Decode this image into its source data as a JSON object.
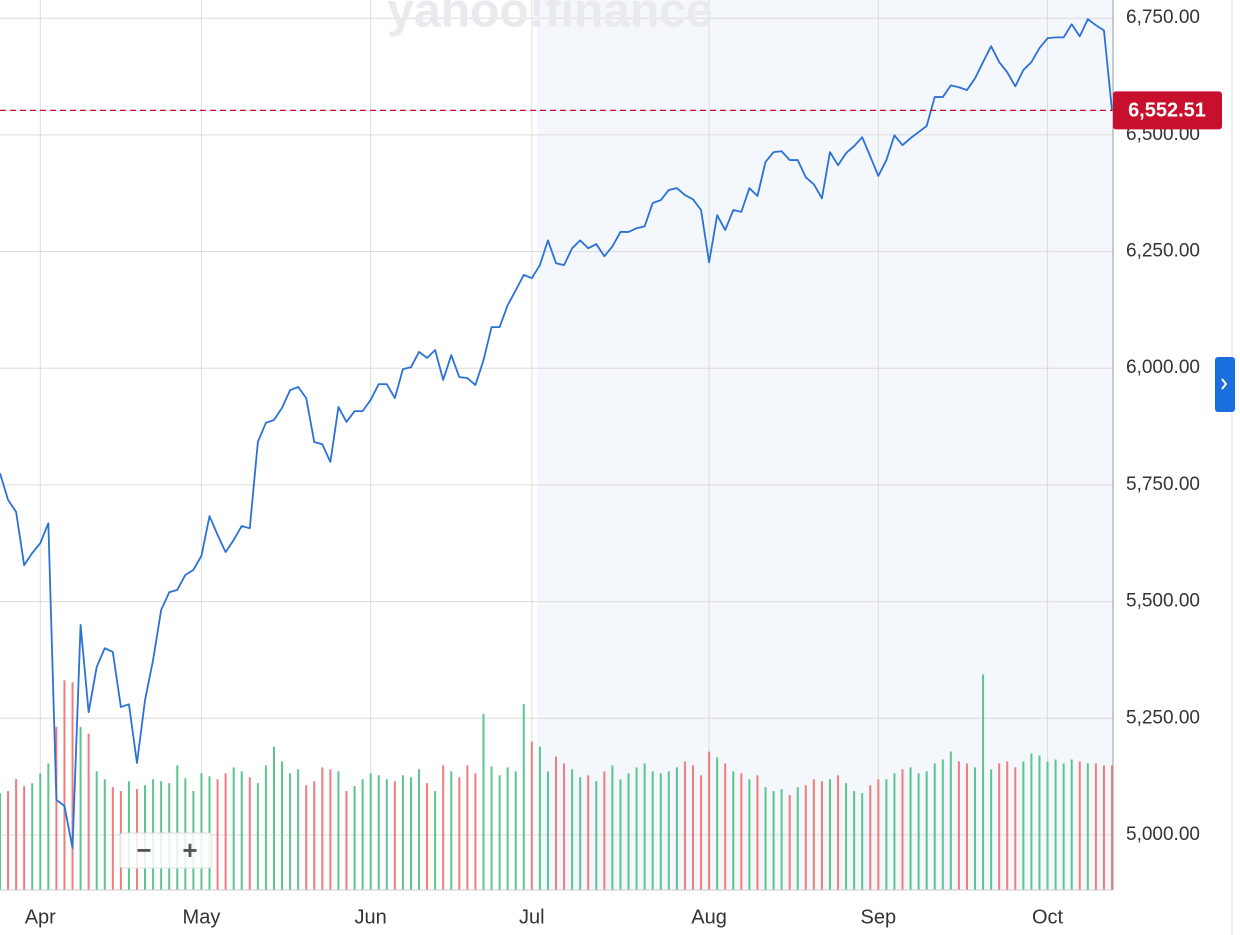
{
  "chart_data": {
    "type": "line",
    "watermark": "yahoo!finance",
    "zoom_out": "−",
    "zoom_in": "+",
    "categories": [
      null,
      null,
      null,
      null,
      null,
      "Apr",
      null,
      null,
      null,
      null,
      null,
      null,
      null,
      null,
      null,
      null,
      null,
      null,
      null,
      null,
      null,
      null,
      null,
      null,
      null,
      "May",
      null,
      null,
      null,
      null,
      null,
      null,
      null,
      null,
      null,
      null,
      null,
      null,
      null,
      null,
      null,
      null,
      null,
      null,
      null,
      null,
      "Jun",
      null,
      null,
      null,
      null,
      null,
      null,
      null,
      null,
      null,
      null,
      null,
      null,
      null,
      null,
      null,
      null,
      null,
      null,
      null,
      "Jul",
      null,
      null,
      null,
      null,
      null,
      null,
      null,
      null,
      null,
      null,
      null,
      null,
      null,
      null,
      null,
      null,
      null,
      null,
      null,
      null,
      null,
      "Aug",
      null,
      null,
      null,
      null,
      null,
      null,
      null,
      null,
      null,
      null,
      null,
      null,
      null,
      null,
      null,
      null,
      null,
      null,
      null,
      null,
      "Sep",
      null,
      null,
      null,
      null,
      null,
      null,
      null,
      null,
      null,
      null,
      null,
      null,
      null,
      null,
      null,
      null,
      null,
      null,
      null,
      null,
      "Oct",
      null,
      null,
      null,
      null,
      null,
      null,
      null,
      null
    ],
    "series": [
      {
        "color": "#2a72d8",
        "values": [
          5775,
          5718,
          5692,
          5578,
          5604,
          5625,
          5668,
          5075,
          5062,
          4972,
          5450,
          5263,
          5360,
          5400,
          5392,
          5274,
          5280,
          5154,
          5289,
          5375,
          5482,
          5520,
          5525,
          5557,
          5568,
          5598,
          5683,
          5643,
          5606,
          5632,
          5662,
          5657,
          5842,
          5883,
          5889,
          5915,
          5953,
          5960,
          5936,
          5842,
          5837,
          5799,
          5917,
          5885,
          5908,
          5908,
          5932,
          5966,
          5966,
          5936,
          5998,
          6002,
          6035,
          6022,
          6039,
          5975,
          6028,
          5981,
          5979,
          5964,
          6017,
          6088,
          6088,
          6135,
          6167,
          6200,
          6193,
          6221,
          6274,
          6225,
          6221,
          6257,
          6274,
          6257,
          6266,
          6240,
          6261,
          6292,
          6292,
          6300,
          6304,
          6354,
          6360,
          6382,
          6386,
          6371,
          6362,
          6339,
          6227,
          6328,
          6296,
          6339,
          6335,
          6386,
          6369,
          6442,
          6463,
          6465,
          6446,
          6446,
          6409,
          6394,
          6364,
          6463,
          6435,
          6461,
          6476,
          6495,
          6454,
          6412,
          6446,
          6499,
          6478,
          6493,
          6506,
          6519,
          6581,
          6581,
          6606,
          6602,
          6596,
          6621,
          6656,
          6690,
          6656,
          6634,
          6604,
          6639,
          6656,
          6686,
          6707,
          6709,
          6709,
          6737,
          6711,
          6748,
          6735,
          6724,
          6552.51
        ]
      }
    ],
    "volume": {
      "axis": "y2",
      "up_color": "#5cc48e",
      "down_color": "#f07c7c",
      "values": [
        98,
        100,
        112,
        105,
        108,
        118,
        128,
        165,
        212,
        210,
        165,
        158,
        120,
        112,
        104,
        100,
        110,
        102,
        106,
        112,
        110,
        108,
        126,
        113,
        100,
        118,
        115,
        112,
        118,
        124,
        120,
        114,
        108,
        126,
        145,
        130,
        118,
        122,
        106,
        110,
        124,
        122,
        120,
        100,
        105,
        112,
        118,
        116,
        112,
        110,
        116,
        114,
        122,
        108,
        100,
        126,
        120,
        114,
        126,
        118,
        178,
        125,
        116,
        124,
        120,
        188,
        150,
        145,
        120,
        135,
        128,
        122,
        114,
        116,
        110,
        120,
        126,
        112,
        118,
        124,
        128,
        120,
        118,
        120,
        124,
        130,
        126,
        116,
        140,
        134,
        128,
        120,
        118,
        112,
        116,
        104,
        100,
        102,
        96,
        104,
        106,
        112,
        110,
        112,
        116,
        108,
        100,
        98,
        106,
        112,
        112,
        118,
        122,
        124,
        118,
        120,
        128,
        132,
        140,
        130,
        128,
        124,
        218,
        122,
        128,
        130,
        124,
        130,
        138,
        136,
        130,
        132,
        128,
        132,
        130,
        128,
        128,
        126,
        126
      ]
    },
    "y2lim": [
      0,
      900
    ],
    "ylim": [
      4882,
      6789
    ],
    "yticks": [
      {
        "value": 5000,
        "label": "5,000.00"
      },
      {
        "value": 5250,
        "label": "5,250.00"
      },
      {
        "value": 5500,
        "label": "5,500.00"
      },
      {
        "value": 5750,
        "label": "5,750.00"
      },
      {
        "value": 6000,
        "label": "6,000.00"
      },
      {
        "value": 6250,
        "label": "6,250.00"
      },
      {
        "value": 6500,
        "label": "6,500.00"
      },
      {
        "value": 6750,
        "label": "6,750.00"
      }
    ],
    "last_price": {
      "value": 6552.51,
      "label": "6,552.51",
      "color": "#c8102e"
    },
    "grid": true
  }
}
